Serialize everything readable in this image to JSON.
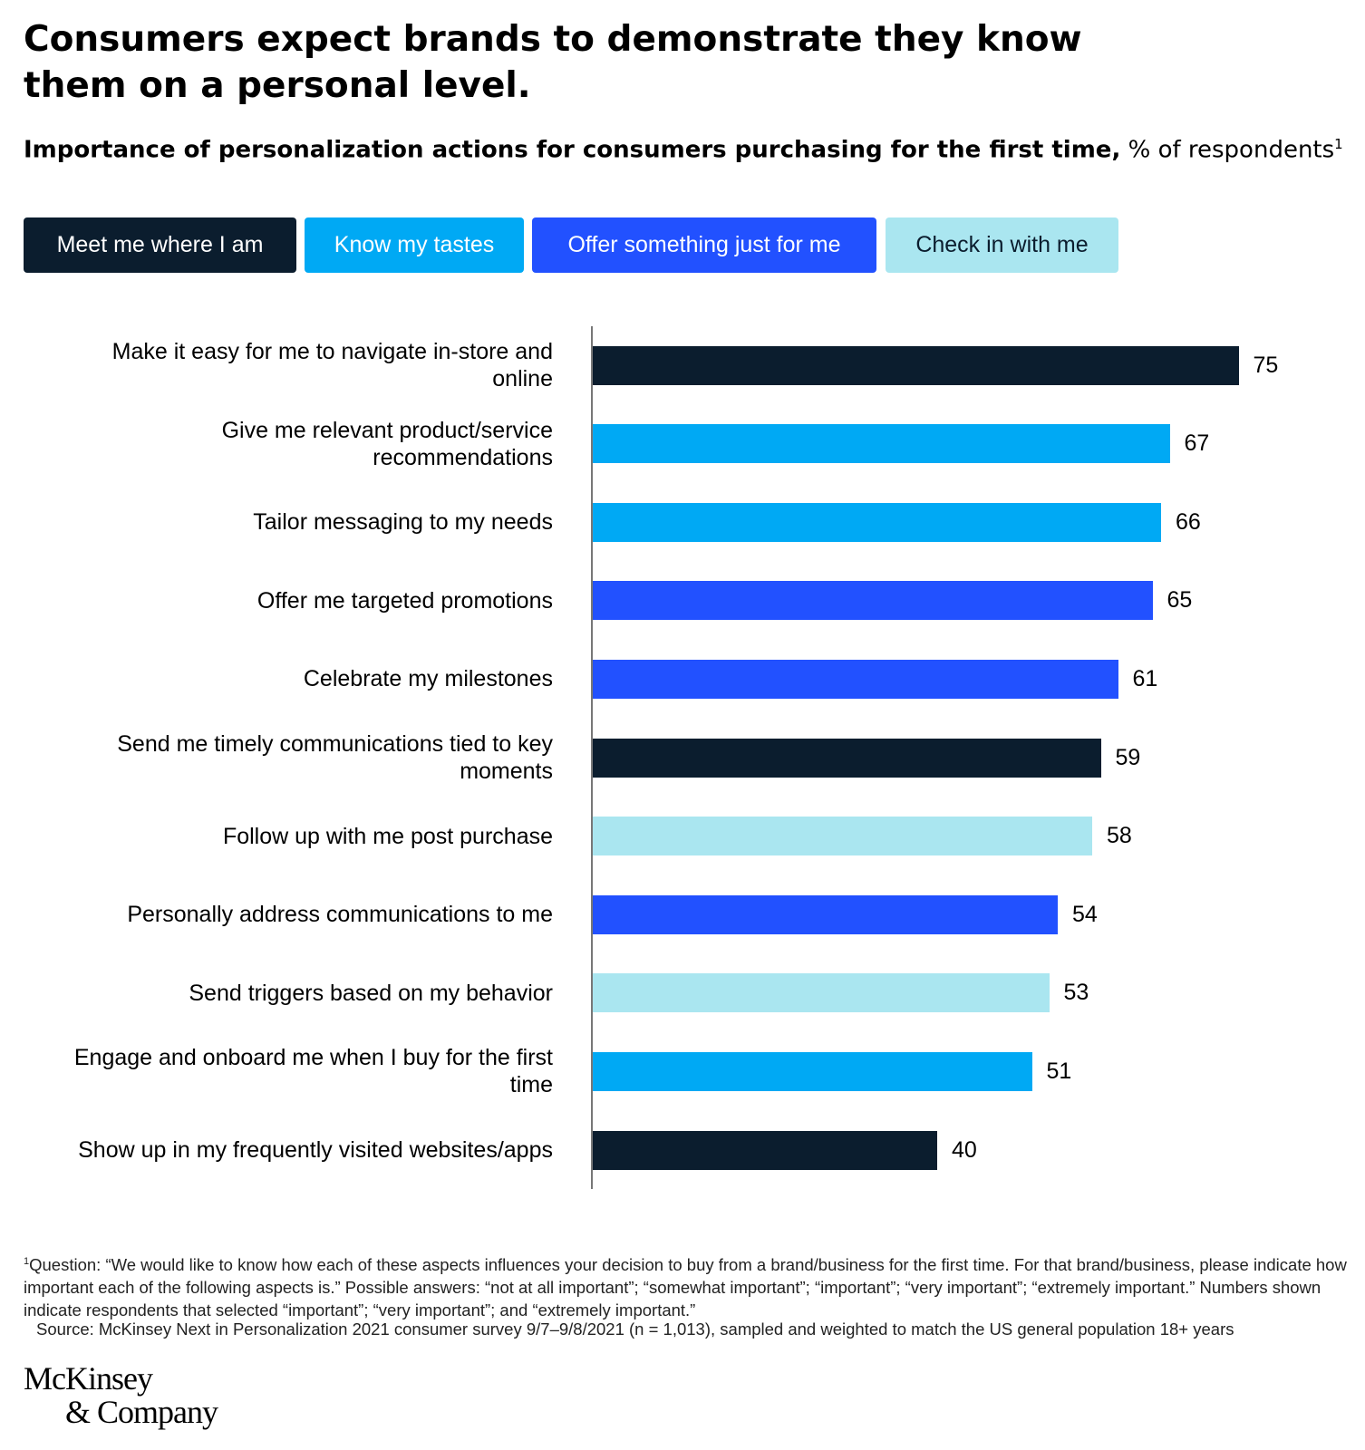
{
  "chart_data": {
    "type": "bar",
    "title": "Consumers expect brands to demonstrate they know them on a personal level.",
    "subtitle": "Importance of personalization actions for consumers purchasing for the first time,",
    "subtitle_unit": "% of respondents",
    "subtitle_note": "1",
    "legend": [
      {
        "name": "Meet me where I am",
        "color": "#0b1d2e"
      },
      {
        "name": "Know my tastes",
        "color": "#00a9f4"
      },
      {
        "name": "Offer something just for me",
        "color": "#2251ff"
      },
      {
        "name": "Check in with me",
        "color": "#aae6f0"
      }
    ],
    "categories": [
      "Make it easy for me to navigate in-store and online",
      "Give me relevant product/service recommendations",
      "Tailor messaging to my needs",
      "Offer me targeted promotions",
      "Celebrate my milestones",
      "Send me timely communications tied to key moments",
      "Follow up with me post purchase",
      "Personally address communications to me",
      "Send triggers based on my behavior",
      "Engage and onboard me when I buy for the first time",
      "Show up in my frequently visited websites/apps"
    ],
    "values": [
      75,
      67,
      66,
      65,
      61,
      59,
      58,
      54,
      53,
      51,
      40
    ],
    "colors": [
      "#0b1d2e",
      "#00a9f4",
      "#00a9f4",
      "#2251ff",
      "#2251ff",
      "#0b1d2e",
      "#aae6f0",
      "#2251ff",
      "#aae6f0",
      "#00a9f4",
      "#0b1d2e"
    ],
    "footnote_marker": "1",
    "footnote": "Question: “We would like to know how each of these aspects influences your decision to buy from a brand/business for the first time. For that brand/business, please indicate how important each of the following aspects is.” Possible answers: “not at all important”; “somewhat important”; “important”; “very important”; “extremely important.” Numbers shown indicate respondents that selected “important”; “very important”; and “extremely important.”",
    "source": "Source: McKinsey Next in Personalization 2021 consumer survey 9/7–9/8/2021 (n = 1,013), sampled and weighted to match the US general population 18+ years",
    "logo": [
      "McKinsey",
      "& Company"
    ]
  }
}
